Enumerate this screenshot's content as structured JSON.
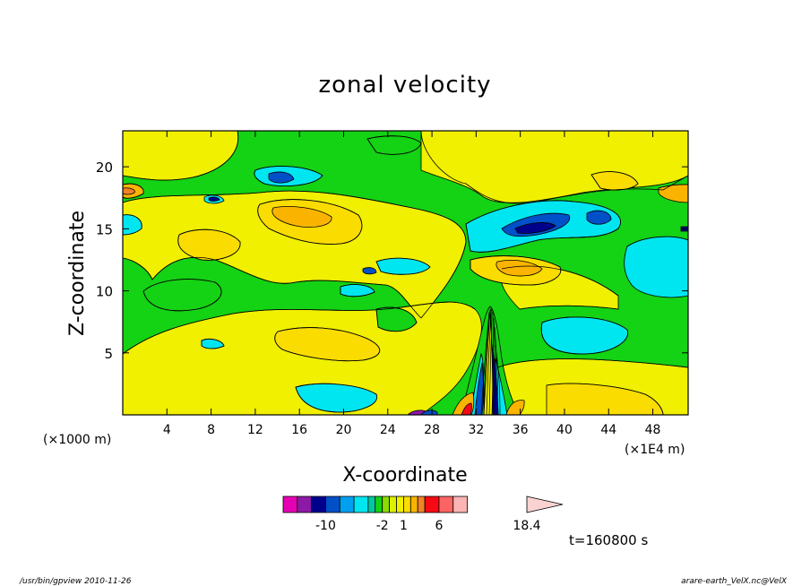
{
  "chart_data": {
    "type": "heatmap",
    "title": "zonal velocity",
    "xlabel": "X-coordinate",
    "ylabel": "Z-coordinate",
    "x_unit": "(×1E4 m)",
    "y_unit": "(×1000 m)",
    "x_ticks": [
      "4",
      "8",
      "12",
      "16",
      "20",
      "24",
      "28",
      "32",
      "36",
      "40",
      "44",
      "48"
    ],
    "y_ticks": [
      "5",
      "10",
      "15",
      "20"
    ],
    "xlim": [
      0,
      51.2
    ],
    "ylim": [
      0,
      22.9
    ],
    "colorbar": {
      "levels": [
        -16,
        -14,
        -12,
        -10,
        -8,
        -6,
        -4,
        -3,
        -2,
        -1,
        0,
        1,
        2,
        3,
        4,
        6,
        8,
        10,
        12,
        14,
        16,
        18.4
      ],
      "colors": [
        "#e600b4",
        "#8c1aa6",
        "#00008c",
        "#0050c8",
        "#00a0f0",
        "#00e6f0",
        "#00c8a0",
        "#14d214",
        "#8cdc00",
        "#dcf000",
        "#f0f000",
        "#fadc00",
        "#fab400",
        "#f08228",
        "#f50a14",
        "#fa6464",
        "#fab4b4",
        "#fad2d2"
      ],
      "tick_labels": [
        "-10",
        "-2",
        "1",
        "6",
        "18.4"
      ]
    },
    "grid": false
  },
  "time_label": "t=160800 s",
  "footer": {
    "left": "/usr/bin/gpview   2010-11-26",
    "right": "arare-earth_VelX.nc@VelX"
  }
}
